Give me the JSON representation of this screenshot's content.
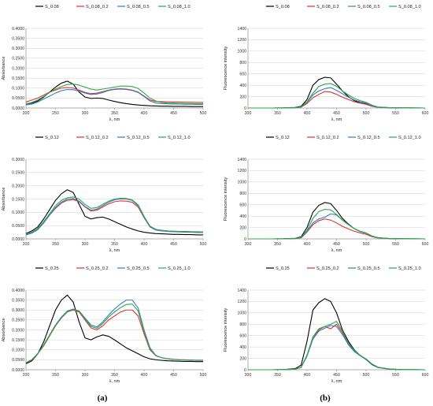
{
  "panel_labels": [
    "(a)",
    "(b)"
  ],
  "chart_data": [
    {
      "type": "line",
      "ylabel": "Absorbance",
      "xlabel": "λ, nm",
      "xlim": [
        200,
        500
      ],
      "ylim": [
        0,
        0.4
      ],
      "xticks": [
        200,
        250,
        300,
        350,
        400,
        450,
        500
      ],
      "yticks": [
        "0.0000",
        "0.0500",
        "0.1000",
        "0.1500",
        "0.2000",
        "0.2500",
        "0.3000",
        "0.3500",
        "0.4000"
      ],
      "grid": "horizontal",
      "legend": "top",
      "x": [
        200,
        210,
        220,
        230,
        240,
        250,
        260,
        270,
        280,
        290,
        300,
        310,
        320,
        330,
        340,
        350,
        360,
        370,
        380,
        390,
        400,
        410,
        420,
        430,
        440,
        450,
        460,
        470,
        480,
        490,
        500
      ],
      "series": [
        {
          "name": "S_0.08",
          "color": "#000000",
          "values": [
            0.02,
            0.025,
            0.035,
            0.055,
            0.08,
            0.105,
            0.125,
            0.135,
            0.12,
            0.08,
            0.055,
            0.048,
            0.05,
            0.048,
            0.04,
            0.033,
            0.027,
            0.022,
            0.018,
            0.015,
            0.013,
            0.011,
            0.01,
            0.009,
            0.009,
            0.008,
            0.008,
            0.008,
            0.007,
            0.007,
            0.007
          ]
        },
        {
          "name": "S_0.08_0.2",
          "color": "#e03030",
          "values": [
            0.03,
            0.04,
            0.05,
            0.065,
            0.08,
            0.09,
            0.1,
            0.103,
            0.1,
            0.09,
            0.078,
            0.072,
            0.075,
            0.082,
            0.09,
            0.095,
            0.097,
            0.095,
            0.09,
            0.08,
            0.06,
            0.04,
            0.033,
            0.032,
            0.031,
            0.03,
            0.03,
            0.029,
            0.029,
            0.028,
            0.028
          ]
        },
        {
          "name": "S_0.08_0.5",
          "color": "#3a78c8",
          "values": [
            0.015,
            0.02,
            0.03,
            0.045,
            0.06,
            0.075,
            0.087,
            0.093,
            0.092,
            0.085,
            0.075,
            0.068,
            0.07,
            0.078,
            0.088,
            0.093,
            0.095,
            0.093,
            0.088,
            0.078,
            0.058,
            0.035,
            0.025,
            0.022,
            0.021,
            0.02,
            0.02,
            0.019,
            0.019,
            0.018,
            0.018
          ]
        },
        {
          "name": "S_0.08_1.0",
          "color": "#2aa84a",
          "values": [
            0.02,
            0.028,
            0.04,
            0.058,
            0.078,
            0.095,
            0.108,
            0.118,
            0.12,
            0.115,
            0.105,
            0.095,
            0.09,
            0.095,
            0.1,
            0.105,
            0.11,
            0.11,
            0.108,
            0.098,
            0.075,
            0.05,
            0.035,
            0.028,
            0.025,
            0.024,
            0.023,
            0.022,
            0.022,
            0.021,
            0.021
          ]
        }
      ]
    },
    {
      "type": "line",
      "ylabel": "Fluorescence intensity",
      "xlabel": "λ, nm",
      "xlim": [
        300,
        600
      ],
      "ylim": [
        0,
        1400
      ],
      "xticks": [
        300,
        350,
        400,
        450,
        500,
        550,
        600
      ],
      "yticks": [
        "0",
        "200",
        "400",
        "600",
        "800",
        "1000",
        "1200",
        "1400"
      ],
      "grid": "horizontal",
      "legend": "top",
      "x": [
        300,
        320,
        340,
        360,
        380,
        390,
        400,
        410,
        420,
        430,
        440,
        450,
        460,
        470,
        480,
        490,
        500,
        510,
        520,
        540,
        560,
        580,
        600
      ],
      "series": [
        {
          "name": "S_0.08",
          "color": "#000000",
          "values": [
            0,
            0,
            0,
            2,
            10,
            30,
            150,
            400,
            500,
            540,
            530,
            420,
            300,
            200,
            130,
            90,
            70,
            35,
            15,
            5,
            2,
            1,
            0
          ]
        },
        {
          "name": "S_0.08_0.2",
          "color": "#e03030",
          "values": [
            0,
            0,
            0,
            1,
            5,
            15,
            80,
            180,
            240,
            290,
            280,
            240,
            190,
            150,
            110,
            85,
            65,
            30,
            12,
            4,
            2,
            1,
            0
          ]
        },
        {
          "name": "S_0.08_0.5",
          "color": "#3a78c8",
          "values": [
            0,
            0,
            0,
            1,
            6,
            18,
            100,
            230,
            300,
            340,
            360,
            310,
            250,
            190,
            140,
            110,
            85,
            40,
            15,
            5,
            2,
            1,
            0
          ]
        },
        {
          "name": "S_0.08_1.0",
          "color": "#2aa84a",
          "values": [
            0,
            0,
            0,
            1,
            6,
            20,
            110,
            260,
            380,
            420,
            430,
            380,
            300,
            230,
            170,
            130,
            100,
            50,
            18,
            6,
            2,
            1,
            0
          ]
        }
      ]
    },
    {
      "type": "line",
      "ylabel": "Absorbance",
      "xlabel": "λ, nm",
      "xlim": [
        200,
        500
      ],
      "ylim": [
        0,
        0.3
      ],
      "xticks": [
        200,
        250,
        300,
        350,
        400,
        450,
        500
      ],
      "yticks": [
        "0.0000",
        "0.0500",
        "0.1000",
        "0.1500",
        "0.2000",
        "0.2500",
        "0.3000"
      ],
      "grid": "horizontal",
      "legend": "top",
      "x": [
        200,
        210,
        220,
        230,
        240,
        250,
        260,
        270,
        280,
        290,
        300,
        310,
        320,
        330,
        340,
        350,
        360,
        370,
        380,
        390,
        400,
        410,
        420,
        430,
        440,
        450,
        460,
        470,
        480,
        490,
        500
      ],
      "series": [
        {
          "name": "S_0.12",
          "color": "#000000",
          "values": [
            0.02,
            0.03,
            0.045,
            0.075,
            0.11,
            0.145,
            0.17,
            0.185,
            0.175,
            0.13,
            0.085,
            0.075,
            0.08,
            0.082,
            0.075,
            0.065,
            0.055,
            0.045,
            0.037,
            0.03,
            0.025,
            0.022,
            0.02,
            0.019,
            0.018,
            0.017,
            0.017,
            0.016,
            0.016,
            0.015,
            0.015
          ]
        },
        {
          "name": "S_0.12_0.2",
          "color": "#e03030",
          "values": [
            0.015,
            0.022,
            0.035,
            0.06,
            0.09,
            0.115,
            0.135,
            0.145,
            0.148,
            0.14,
            0.12,
            0.105,
            0.108,
            0.12,
            0.132,
            0.14,
            0.143,
            0.142,
            0.138,
            0.12,
            0.08,
            0.045,
            0.035,
            0.032,
            0.03,
            0.029,
            0.028,
            0.028,
            0.027,
            0.027,
            0.026
          ]
        },
        {
          "name": "S_0.12_0.5",
          "color": "#3a78c8",
          "values": [
            0.015,
            0.022,
            0.035,
            0.06,
            0.09,
            0.118,
            0.138,
            0.15,
            0.152,
            0.142,
            0.122,
            0.108,
            0.112,
            0.125,
            0.138,
            0.147,
            0.15,
            0.15,
            0.145,
            0.125,
            0.082,
            0.045,
            0.033,
            0.03,
            0.028,
            0.027,
            0.026,
            0.025,
            0.025,
            0.024,
            0.024
          ]
        },
        {
          "name": "S_0.12_1.0",
          "color": "#2aa84a",
          "values": [
            0.018,
            0.025,
            0.04,
            0.065,
            0.095,
            0.125,
            0.145,
            0.155,
            0.158,
            0.15,
            0.13,
            0.115,
            0.118,
            0.13,
            0.142,
            0.15,
            0.153,
            0.152,
            0.147,
            0.128,
            0.085,
            0.048,
            0.036,
            0.032,
            0.03,
            0.029,
            0.028,
            0.027,
            0.027,
            0.026,
            0.026
          ]
        }
      ]
    },
    {
      "type": "line",
      "ylabel": "Fluorescence intensity",
      "xlabel": "λ, nm",
      "xlim": [
        300,
        600
      ],
      "ylim": [
        0,
        1400
      ],
      "xticks": [
        300,
        350,
        400,
        450,
        500,
        550,
        600
      ],
      "yticks": [
        "0",
        "200",
        "400",
        "600",
        "800",
        "1000",
        "1200",
        "1400"
      ],
      "grid": "horizontal",
      "legend": "top",
      "x": [
        300,
        320,
        340,
        360,
        380,
        390,
        400,
        410,
        420,
        430,
        440,
        450,
        460,
        470,
        480,
        490,
        500,
        510,
        520,
        540,
        560,
        580,
        600
      ],
      "series": [
        {
          "name": "S_0.12",
          "color": "#000000",
          "values": [
            0,
            0,
            0,
            2,
            10,
            35,
            200,
            470,
            590,
            640,
            620,
            500,
            360,
            260,
            180,
            130,
            100,
            50,
            20,
            6,
            2,
            1,
            0
          ]
        },
        {
          "name": "S_0.12_0.2",
          "color": "#e03030",
          "values": [
            0,
            0,
            0,
            1,
            6,
            20,
            120,
            250,
            320,
            350,
            330,
            280,
            220,
            175,
            135,
            105,
            80,
            38,
            14,
            5,
            2,
            1,
            0
          ]
        },
        {
          "name": "S_0.12_0.5",
          "color": "#3a78c8",
          "values": [
            0,
            0,
            0,
            1,
            6,
            20,
            130,
            280,
            350,
            380,
            440,
            420,
            330,
            250,
            180,
            130,
            100,
            48,
            18,
            6,
            2,
            1,
            0
          ]
        },
        {
          "name": "S_0.12_1.0",
          "color": "#2aa84a",
          "values": [
            0,
            0,
            0,
            1,
            7,
            24,
            150,
            360,
            480,
            520,
            510,
            430,
            330,
            250,
            180,
            135,
            105,
            50,
            20,
            6,
            2,
            1,
            0
          ]
        }
      ]
    },
    {
      "type": "line",
      "ylabel": "Absorbance",
      "xlabel": "λ, nm",
      "xlim": [
        200,
        500
      ],
      "ylim": [
        0,
        0.4
      ],
      "xticks": [
        200,
        250,
        300,
        350,
        400,
        450,
        500
      ],
      "yticks": [
        "0.0000",
        "0.0500",
        "0.1000",
        "0.1500",
        "0.2000",
        "0.2500",
        "0.3000",
        "0.3500",
        "0.4000"
      ],
      "grid": "horizontal",
      "legend": "top",
      "x": [
        200,
        210,
        220,
        230,
        240,
        250,
        260,
        270,
        280,
        290,
        300,
        310,
        320,
        330,
        340,
        350,
        360,
        370,
        380,
        390,
        400,
        410,
        420,
        430,
        440,
        450,
        460,
        470,
        480,
        490,
        500
      ],
      "series": [
        {
          "name": "S_0.25",
          "color": "#000000",
          "values": [
            0.03,
            0.045,
            0.08,
            0.14,
            0.22,
            0.3,
            0.35,
            0.375,
            0.34,
            0.24,
            0.16,
            0.15,
            0.165,
            0.175,
            0.168,
            0.15,
            0.13,
            0.11,
            0.095,
            0.08,
            0.065,
            0.055,
            0.05,
            0.047,
            0.045,
            0.044,
            0.043,
            0.042,
            0.042,
            0.041,
            0.041
          ]
        },
        {
          "name": "S_0.25_0.2",
          "color": "#e03030",
          "values": [
            0.035,
            0.05,
            0.08,
            0.12,
            0.17,
            0.22,
            0.26,
            0.29,
            0.3,
            0.29,
            0.25,
            0.21,
            0.2,
            0.22,
            0.25,
            0.27,
            0.29,
            0.3,
            0.3,
            0.27,
            0.18,
            0.1,
            0.07,
            0.06,
            0.056,
            0.053,
            0.051,
            0.05,
            0.049,
            0.048,
            0.048
          ]
        },
        {
          "name": "S_0.25_0.5",
          "color": "#3a78c8",
          "values": [
            0.035,
            0.05,
            0.082,
            0.125,
            0.175,
            0.225,
            0.265,
            0.295,
            0.305,
            0.295,
            0.26,
            0.225,
            0.215,
            0.24,
            0.275,
            0.305,
            0.33,
            0.35,
            0.35,
            0.31,
            0.2,
            0.11,
            0.072,
            0.06,
            0.055,
            0.052,
            0.05,
            0.049,
            0.048,
            0.047,
            0.047
          ]
        },
        {
          "name": "S_0.25_1.0",
          "color": "#2aa84a",
          "values": [
            0.035,
            0.05,
            0.082,
            0.123,
            0.173,
            0.223,
            0.262,
            0.292,
            0.303,
            0.293,
            0.255,
            0.218,
            0.208,
            0.232,
            0.265,
            0.29,
            0.312,
            0.328,
            0.33,
            0.295,
            0.192,
            0.105,
            0.071,
            0.06,
            0.055,
            0.052,
            0.05,
            0.049,
            0.048,
            0.047,
            0.047
          ]
        }
      ]
    },
    {
      "type": "line",
      "ylabel": "Fluorescence intensity",
      "xlabel": "λ, nm",
      "xlim": [
        300,
        600
      ],
      "ylim": [
        0,
        1400
      ],
      "xticks": [
        300,
        350,
        400,
        450,
        500,
        550,
        600
      ],
      "yticks": [
        "0",
        "200",
        "400",
        "600",
        "800",
        "1000",
        "1200",
        "1400"
      ],
      "grid": "horizontal",
      "legend": "top",
      "x": [
        300,
        320,
        340,
        360,
        380,
        390,
        400,
        410,
        420,
        430,
        440,
        450,
        460,
        470,
        480,
        490,
        500,
        510,
        520,
        540,
        560,
        580,
        600
      ],
      "series": [
        {
          "name": "S_0.25",
          "color": "#000000",
          "values": [
            0,
            0,
            0,
            3,
            20,
            80,
            500,
            1050,
            1180,
            1250,
            1200,
            1000,
            700,
            500,
            350,
            250,
            180,
            90,
            40,
            10,
            3,
            1,
            0
          ]
        },
        {
          "name": "S_0.25_0.2",
          "color": "#e03030",
          "values": [
            0,
            0,
            0,
            2,
            10,
            40,
            250,
            550,
            700,
            760,
            720,
            800,
            650,
            450,
            330,
            250,
            190,
            100,
            45,
            12,
            3,
            1,
            0
          ]
        },
        {
          "name": "S_0.25_0.5",
          "color": "#3a78c8",
          "values": [
            0,
            0,
            0,
            2,
            10,
            40,
            240,
            540,
            680,
            730,
            780,
            760,
            620,
            440,
            320,
            245,
            185,
            98,
            44,
            12,
            3,
            1,
            0
          ]
        },
        {
          "name": "S_0.25_1.0",
          "color": "#2aa84a",
          "values": [
            0,
            0,
            0,
            2,
            10,
            42,
            260,
            580,
            720,
            760,
            800,
            850,
            680,
            470,
            340,
            255,
            190,
            100,
            45,
            12,
            3,
            1,
            0
          ]
        }
      ]
    }
  ]
}
